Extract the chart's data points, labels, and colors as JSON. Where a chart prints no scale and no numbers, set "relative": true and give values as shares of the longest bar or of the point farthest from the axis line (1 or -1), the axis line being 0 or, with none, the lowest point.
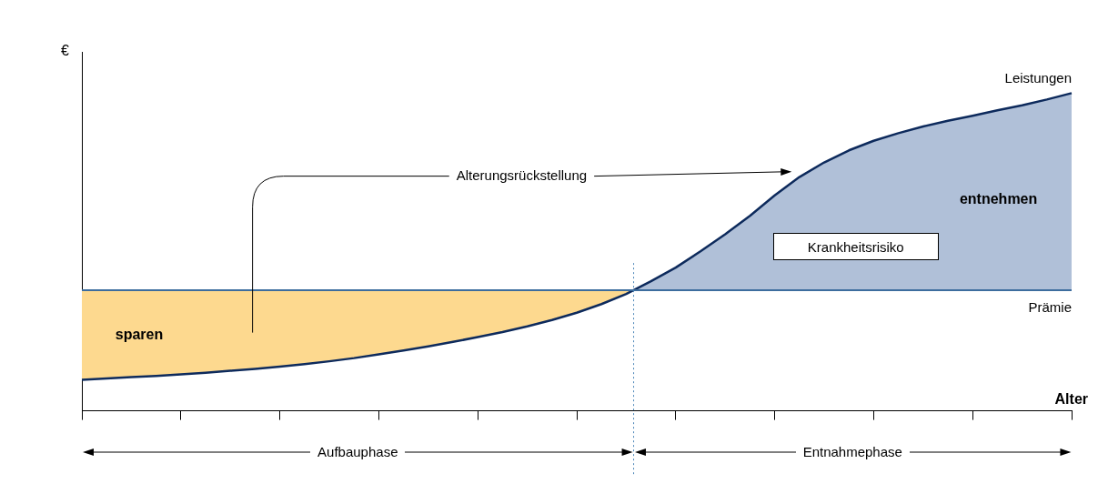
{
  "chart_data": {
    "type": "line",
    "relative": true,
    "xlabel": "Alter",
    "ylabel": "€",
    "categories": [
      null,
      null,
      null,
      null,
      null,
      null,
      null,
      null,
      null,
      null,
      null,
      null,
      null,
      null,
      null,
      null,
      null,
      null,
      null,
      null,
      null,
      null,
      null,
      null,
      null,
      null,
      null,
      null,
      null,
      null,
      null,
      null,
      null,
      null,
      null,
      null,
      null,
      null,
      null,
      null,
      null
    ],
    "series": [
      {
        "name": "Leistungen",
        "color": "#0d2a5c",
        "values": [
          0.098,
          0.102,
          0.106,
          0.11,
          0.115,
          0.12,
          0.126,
          0.132,
          0.139,
          0.147,
          0.156,
          0.166,
          0.178,
          0.19,
          0.203,
          0.217,
          0.232,
          0.248,
          0.266,
          0.286,
          0.309,
          0.336,
          0.368,
          0.408,
          0.451,
          0.502,
          0.556,
          0.614,
          0.678,
          0.736,
          0.782,
          0.82,
          0.85,
          0.874,
          0.895,
          0.913,
          0.929,
          0.946,
          0.962,
          0.98,
          1.0
        ]
      },
      {
        "name": "Prämie",
        "color": "#3d6d9e",
        "values": [
          0.38,
          0.38,
          0.38,
          0.38,
          0.38,
          0.38,
          0.38,
          0.38,
          0.38,
          0.38,
          0.38,
          0.38,
          0.38,
          0.38,
          0.38,
          0.38,
          0.38,
          0.38,
          0.38,
          0.38,
          0.38,
          0.38,
          0.38,
          0.38,
          0.38,
          0.38,
          0.38,
          0.38,
          0.38,
          0.38,
          0.38,
          0.38,
          0.38,
          0.38,
          0.38,
          0.38,
          0.38,
          0.38,
          0.38,
          0.38,
          0.38
        ]
      }
    ],
    "annotations": [
      "Alterungsrückstellung",
      "sparen",
      "entnehmen",
      "Krankheitsrisiko",
      "Aufbauphase",
      "Entnahmephase"
    ],
    "legend": false,
    "marker": "none",
    "line_style": "solid",
    "grid": false
  }
}
